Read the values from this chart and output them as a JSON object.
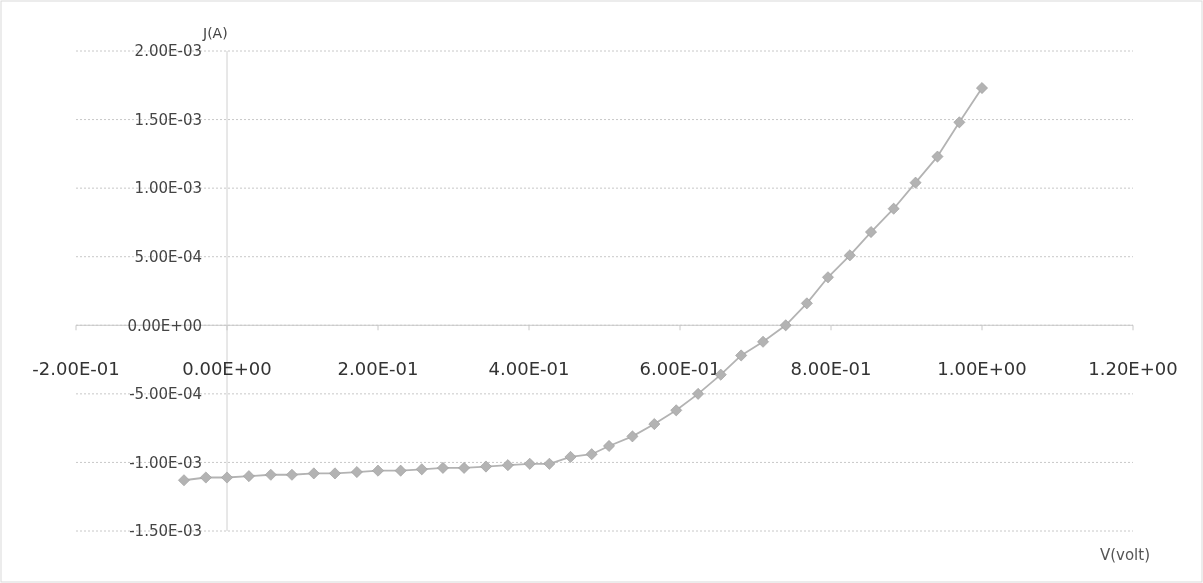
{
  "chart_data": {
    "type": "line",
    "xlabel": "V(volt)",
    "ylabel": "J(A)",
    "marker": "diamond",
    "grid": "y",
    "line_style": "solid",
    "xlim": [
      -0.2,
      1.2
    ],
    "ylim": [
      -0.0015,
      0.002
    ],
    "xticks": [
      {
        "value": -0.2,
        "label": "-2.00E-01"
      },
      {
        "value": 0,
        "label": "0.00E+00"
      },
      {
        "value": 0.2,
        "label": "2.00E-01"
      },
      {
        "value": 0.4,
        "label": "4.00E-01"
      },
      {
        "value": 0.6,
        "label": "6.00E-01"
      },
      {
        "value": 0.8,
        "label": "8.00E-01"
      },
      {
        "value": 1.0,
        "label": "1.00E+00"
      },
      {
        "value": 1.2,
        "label": "1.20E+00"
      }
    ],
    "yticks": [
      {
        "value": 0.002,
        "label": "2.00E-03"
      },
      {
        "value": 0.0015,
        "label": "1.50E-03"
      },
      {
        "value": 0.001,
        "label": "1.00E-03"
      },
      {
        "value": 0.0005,
        "label": "5.00E-04"
      },
      {
        "value": 0,
        "label": "0.00E+00"
      },
      {
        "value": -0.0005,
        "label": "-5.00E-04"
      },
      {
        "value": -0.001,
        "label": "-1.00E-03"
      },
      {
        "value": -0.0015,
        "label": "-1.50E-03"
      }
    ],
    "series": [
      {
        "color": "#b3b3b3",
        "x": [
          -0.057,
          -0.028,
          0.0,
          0.029,
          0.058,
          0.086,
          0.115,
          0.143,
          0.172,
          0.2,
          0.23,
          0.258,
          0.286,
          0.314,
          0.343,
          0.372,
          0.401,
          0.427,
          0.455,
          0.483,
          0.506,
          0.537,
          0.566,
          0.595,
          0.624,
          0.654,
          0.681,
          0.71,
          0.74,
          0.768,
          0.796,
          0.825,
          0.853,
          0.883,
          0.912,
          0.941,
          0.97,
          1.0
        ],
        "values": [
          -0.00113,
          -0.00111,
          -0.00111,
          -0.0011,
          -0.00109,
          -0.00109,
          -0.00108,
          -0.00108,
          -0.00107,
          -0.00106,
          -0.00106,
          -0.00105,
          -0.00104,
          -0.00104,
          -0.00103,
          -0.00102,
          -0.00101,
          -0.00101,
          -0.00096,
          -0.00094,
          -0.00088,
          -0.00081,
          -0.00072,
          -0.00062,
          -0.0005,
          -0.00036,
          -0.00022,
          -0.00012,
          0,
          0.00016,
          0.00035,
          0.00051,
          0.00068,
          0.00085,
          0.00104,
          0.00123,
          0.00148,
          0.00173
        ]
      }
    ]
  }
}
